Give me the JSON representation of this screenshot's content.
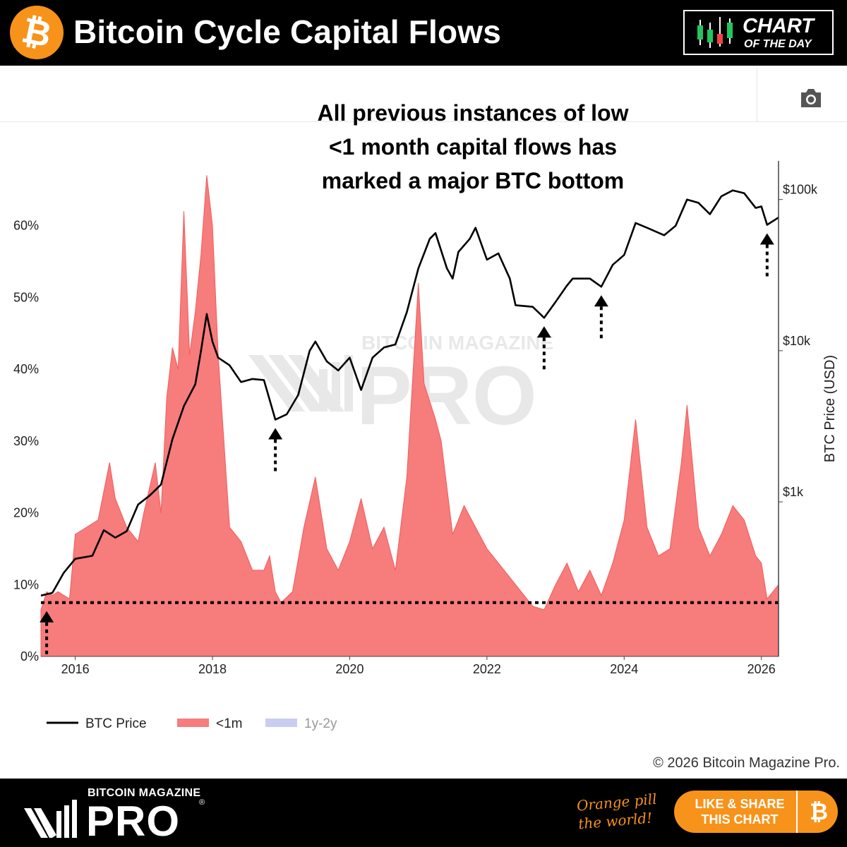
{
  "header": {
    "logo_symbol": "₿",
    "title": "Bitcoin Cycle Capital Flows",
    "badge_line1": "CHART",
    "badge_line2": "OF THE DAY",
    "badge_icon": "candlestick-chart-icon"
  },
  "toolbar": {
    "camera_icon": "camera-icon"
  },
  "annotation_lines": [
    "All previous instances of low",
    "<1 month capital flows has",
    "marked a major BTC bottom"
  ],
  "watermark": {
    "line1": "BITCOIN MAGAZINE",
    "line2": "PRO"
  },
  "copyright": "© 2026 Bitcoin Magazine Pro.",
  "footer": {
    "brand_top": "BITCOIN MAGAZINE",
    "brand_main": "PRO",
    "registered_mark": "®",
    "tagline_line1": "Orange pill",
    "tagline_line2": "the world!",
    "cta_line1": "LIKE & SHARE",
    "cta_line2": "THIS CHART",
    "cta_symbol": "₿"
  },
  "colors": {
    "btc_orange": "#f7931a",
    "area_fill": "#f77c7c",
    "price_line": "#000000",
    "legend_faded": "#c9cdf2"
  },
  "chart_data": {
    "type": "area",
    "title": "",
    "xlabel": "",
    "y_left_label": "",
    "y_right_label": "BTC Price (USD)",
    "x_ticks": [
      "2016",
      "2018",
      "2020",
      "2022",
      "2024",
      "2026"
    ],
    "xlim": [
      "2015-07",
      "2026-04"
    ],
    "y_left_ticks": [
      "0%",
      "10%",
      "20%",
      "30%",
      "40%",
      "50%",
      "60%"
    ],
    "ylim_left": [
      0,
      69
    ],
    "y_right_scale": "log",
    "y_right_ticks": [
      "$1k",
      "$10k",
      "$100k"
    ],
    "ylim_right_usd": [
      95,
      180000
    ],
    "grid": false,
    "legend_position": "bottom-left",
    "legend": [
      {
        "name": "BTC Price",
        "kind": "line",
        "active": true
      },
      {
        "name": "<1m",
        "kind": "area",
        "active": true
      },
      {
        "name": "1y-2y",
        "kind": "area",
        "active": false
      }
    ],
    "threshold_line_pct": 7.5,
    "series": [
      {
        "name": "<1m",
        "axis": "left",
        "unit": "%",
        "points": [
          [
            "2015-07",
            6.5
          ],
          [
            "2015-08",
            9
          ],
          [
            "2015-09",
            8.5
          ],
          [
            "2015-10",
            9
          ],
          [
            "2015-12",
            8
          ],
          [
            "2016-01",
            17
          ],
          [
            "2016-03",
            18
          ],
          [
            "2016-05",
            19
          ],
          [
            "2016-07",
            27
          ],
          [
            "2016-08",
            22
          ],
          [
            "2016-10",
            18
          ],
          [
            "2016-12",
            16
          ],
          [
            "2017-01",
            20
          ],
          [
            "2017-03",
            27
          ],
          [
            "2017-04",
            20
          ],
          [
            "2017-05",
            36
          ],
          [
            "2017-06",
            43
          ],
          [
            "2017-07",
            40
          ],
          [
            "2017-08",
            62
          ],
          [
            "2017-09",
            42
          ],
          [
            "2017-10",
            48
          ],
          [
            "2017-11",
            56
          ],
          [
            "2017-12",
            67
          ],
          [
            "2018-01",
            60
          ],
          [
            "2018-02",
            42
          ],
          [
            "2018-03",
            30
          ],
          [
            "2018-04",
            18
          ],
          [
            "2018-06",
            16
          ],
          [
            "2018-08",
            12
          ],
          [
            "2018-10",
            12
          ],
          [
            "2018-11",
            14
          ],
          [
            "2018-12",
            9
          ],
          [
            "2019-01",
            7.5
          ],
          [
            "2019-03",
            9
          ],
          [
            "2019-05",
            18
          ],
          [
            "2019-07",
            25
          ],
          [
            "2019-09",
            15
          ],
          [
            "2019-11",
            12
          ],
          [
            "2020-01",
            16
          ],
          [
            "2020-03",
            22
          ],
          [
            "2020-05",
            15
          ],
          [
            "2020-07",
            18
          ],
          [
            "2020-09",
            12
          ],
          [
            "2020-11",
            25
          ],
          [
            "2021-01",
            52
          ],
          [
            "2021-02",
            38
          ],
          [
            "2021-04",
            33
          ],
          [
            "2021-05",
            30
          ],
          [
            "2021-07",
            17
          ],
          [
            "2021-09",
            21
          ],
          [
            "2021-11",
            18
          ],
          [
            "2022-01",
            15
          ],
          [
            "2022-03",
            13
          ],
          [
            "2022-05",
            11
          ],
          [
            "2022-07",
            9
          ],
          [
            "2022-09",
            7
          ],
          [
            "2022-11",
            6.5
          ],
          [
            "2023-01",
            10
          ],
          [
            "2023-03",
            13
          ],
          [
            "2023-05",
            9
          ],
          [
            "2023-07",
            12
          ],
          [
            "2023-09",
            8.5
          ],
          [
            "2023-11",
            13
          ],
          [
            "2024-01",
            19
          ],
          [
            "2024-03",
            33
          ],
          [
            "2024-05",
            18
          ],
          [
            "2024-07",
            14
          ],
          [
            "2024-09",
            15
          ],
          [
            "2024-11",
            27
          ],
          [
            "2024-12",
            35
          ],
          [
            "2025-02",
            18
          ],
          [
            "2025-04",
            14
          ],
          [
            "2025-06",
            17
          ],
          [
            "2025-08",
            21
          ],
          [
            "2025-10",
            19
          ],
          [
            "2025-12",
            14
          ],
          [
            "2026-01",
            13
          ],
          [
            "2026-02",
            8
          ],
          [
            "2026-04",
            10
          ]
        ]
      },
      {
        "name": "BTC Price",
        "axis": "right",
        "unit": "USD",
        "points": [
          [
            "2015-07",
            240
          ],
          [
            "2015-09",
            250
          ],
          [
            "2015-11",
            340
          ],
          [
            "2016-01",
            420
          ],
          [
            "2016-04",
            440
          ],
          [
            "2016-06",
            650
          ],
          [
            "2016-08",
            580
          ],
          [
            "2016-10",
            640
          ],
          [
            "2016-12",
            960
          ],
          [
            "2017-02",
            1100
          ],
          [
            "2017-04",
            1300
          ],
          [
            "2017-06",
            2600
          ],
          [
            "2017-08",
            4300
          ],
          [
            "2017-10",
            6000
          ],
          [
            "2017-11",
            10000
          ],
          [
            "2017-12",
            17500
          ],
          [
            "2018-01",
            11500
          ],
          [
            "2018-02",
            9000
          ],
          [
            "2018-04",
            8000
          ],
          [
            "2018-06",
            6200
          ],
          [
            "2018-08",
            6500
          ],
          [
            "2018-10",
            6400
          ],
          [
            "2018-12",
            3500
          ],
          [
            "2019-02",
            3800
          ],
          [
            "2019-04",
            5100
          ],
          [
            "2019-06",
            10000
          ],
          [
            "2019-07",
            11500
          ],
          [
            "2019-09",
            8500
          ],
          [
            "2019-11",
            7400
          ],
          [
            "2020-01",
            9000
          ],
          [
            "2020-03",
            5500
          ],
          [
            "2020-05",
            9000
          ],
          [
            "2020-07",
            10500
          ],
          [
            "2020-09",
            11000
          ],
          [
            "2020-11",
            18000
          ],
          [
            "2021-01",
            35000
          ],
          [
            "2021-03",
            55000
          ],
          [
            "2021-04",
            60000
          ],
          [
            "2021-06",
            35000
          ],
          [
            "2021-07",
            30000
          ],
          [
            "2021-08",
            45000
          ],
          [
            "2021-10",
            55000
          ],
          [
            "2021-11",
            65000
          ],
          [
            "2022-01",
            40000
          ],
          [
            "2022-03",
            44000
          ],
          [
            "2022-05",
            30000
          ],
          [
            "2022-06",
            20000
          ],
          [
            "2022-09",
            19500
          ],
          [
            "2022-11",
            16500
          ],
          [
            "2023-01",
            21000
          ],
          [
            "2023-03",
            27000
          ],
          [
            "2023-04",
            30000
          ],
          [
            "2023-07",
            30000
          ],
          [
            "2023-09",
            26500
          ],
          [
            "2023-11",
            37000
          ],
          [
            "2024-01",
            43000
          ],
          [
            "2024-03",
            70000
          ],
          [
            "2024-05",
            65000
          ],
          [
            "2024-08",
            58000
          ],
          [
            "2024-10",
            67000
          ],
          [
            "2024-12",
            100000
          ],
          [
            "2025-02",
            95000
          ],
          [
            "2025-04",
            80000
          ],
          [
            "2025-06",
            105000
          ],
          [
            "2025-08",
            115000
          ],
          [
            "2025-10",
            110000
          ],
          [
            "2025-12",
            88000
          ],
          [
            "2026-01",
            90000
          ],
          [
            "2026-02",
            68000
          ],
          [
            "2026-04",
            76000
          ]
        ]
      }
    ],
    "bottom_markers": [
      "2015-08",
      "2018-12",
      "2022-11",
      "2023-09",
      "2026-02"
    ]
  }
}
